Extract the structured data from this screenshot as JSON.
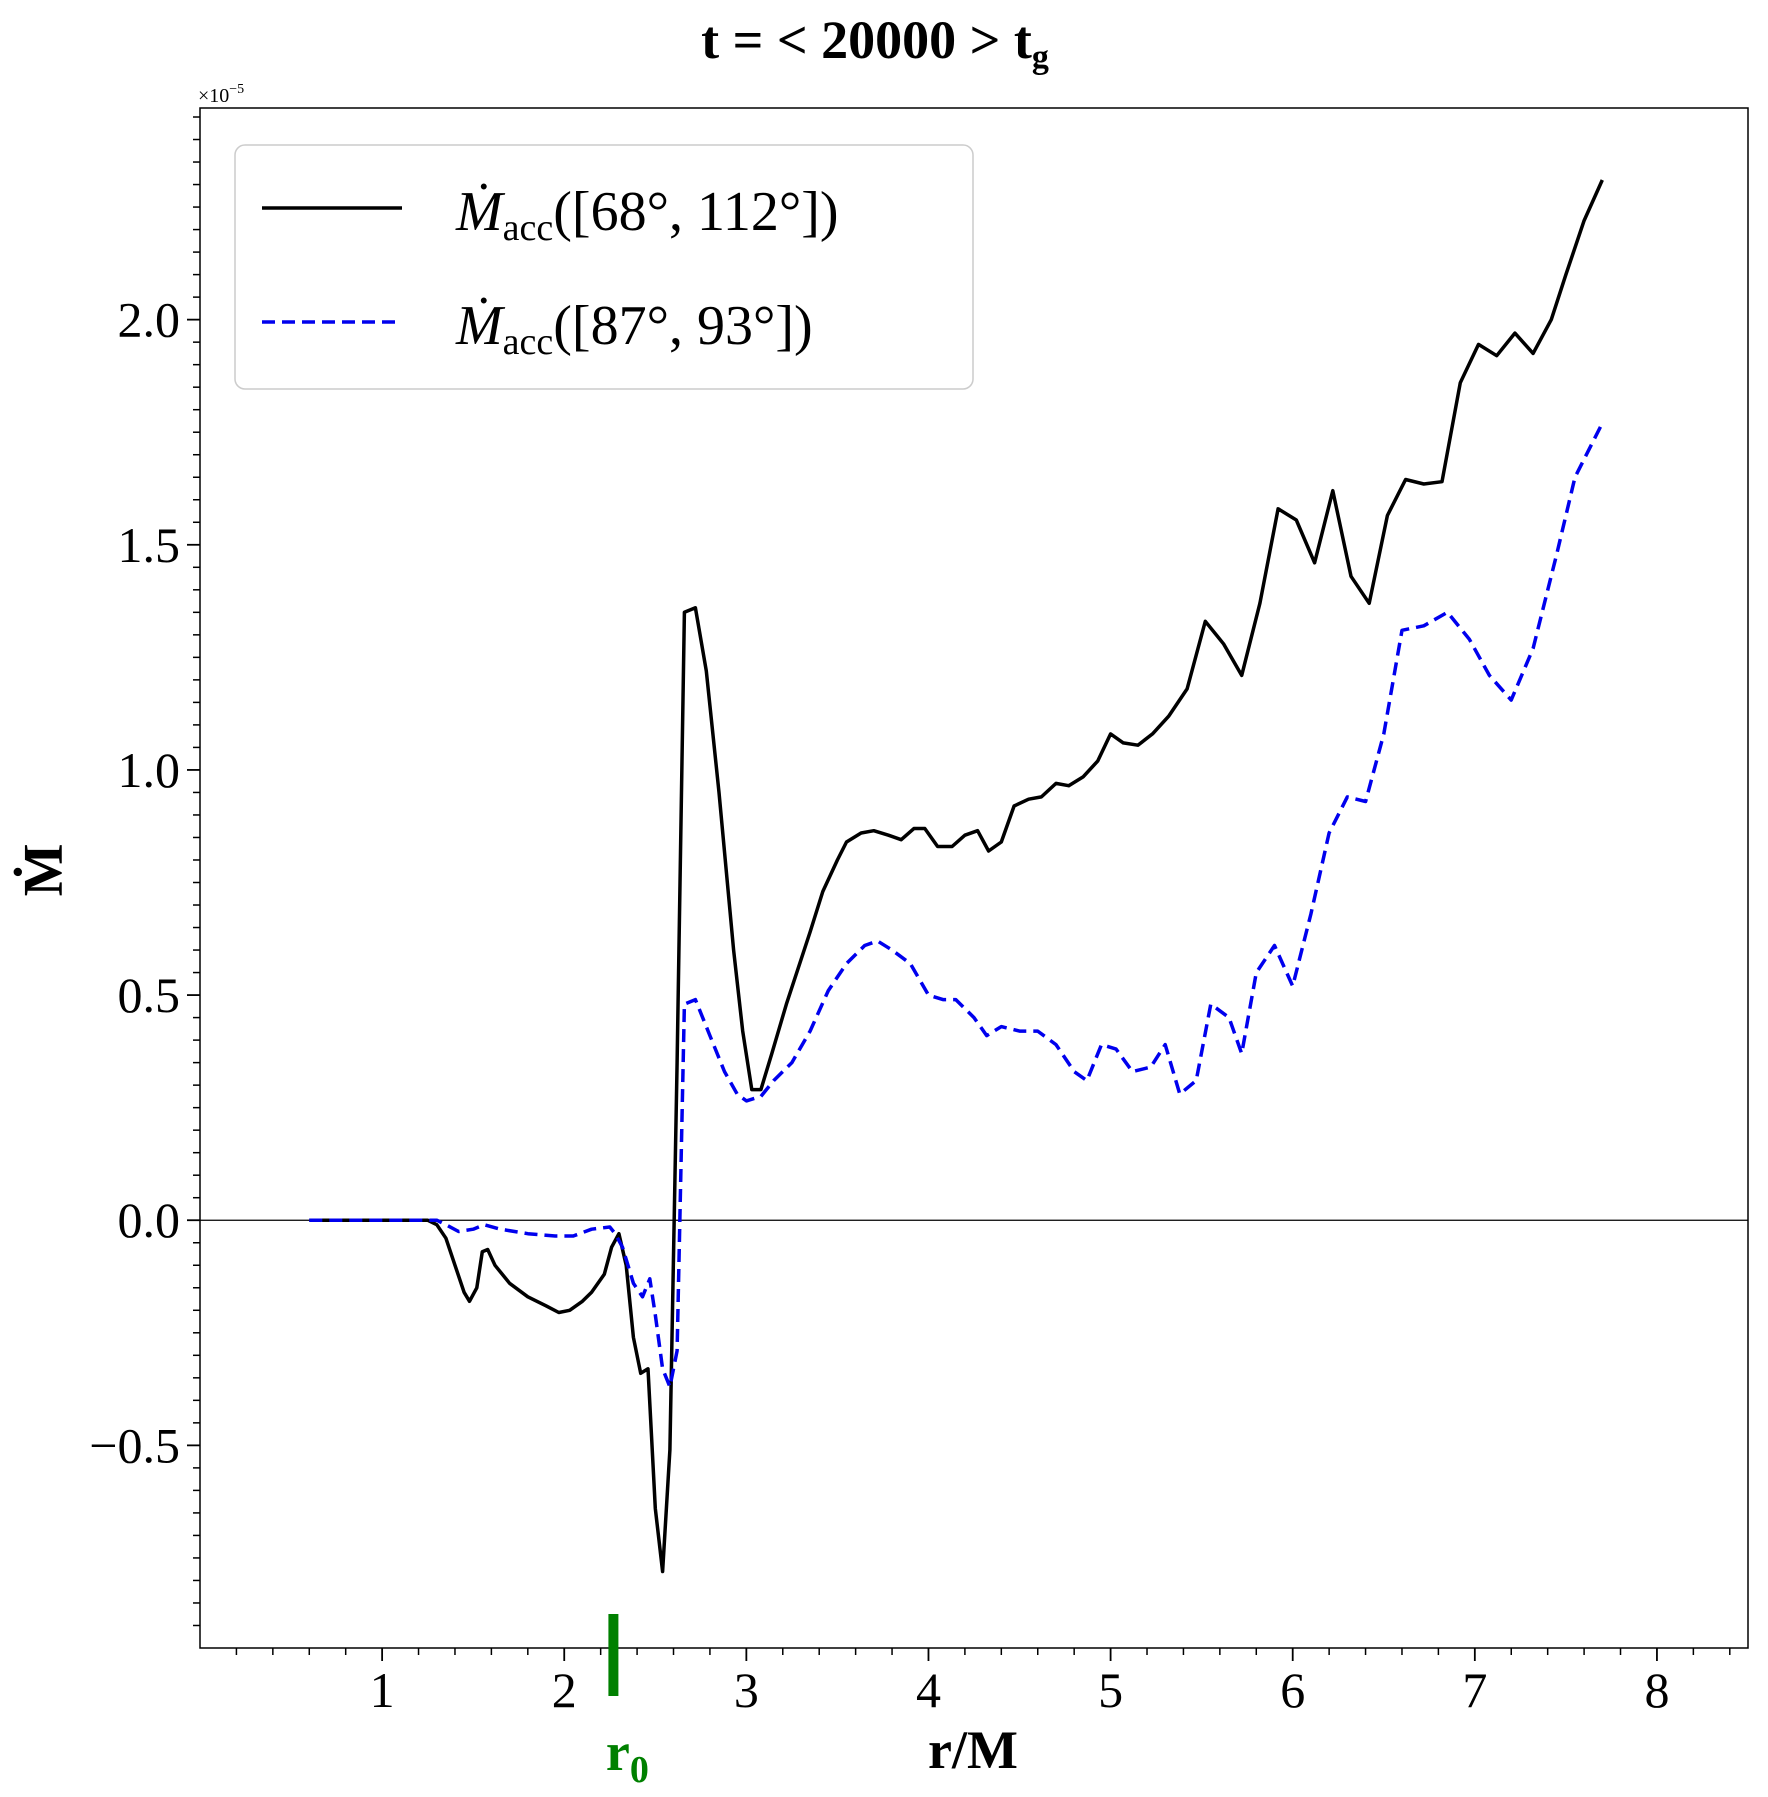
{
  "chart_data": {
    "type": "line",
    "title": "t = < 20000 >  t",
    "title_sub": "g",
    "xlabel": "r/M",
    "ylabel": "Ṁ",
    "y_offset_label": "×10",
    "y_offset_exp": "−5",
    "xlim": [
      0,
      8.5
    ],
    "ylim": [
      -0.95,
      2.47
    ],
    "x_ticks": [
      1,
      2,
      3,
      4,
      5,
      6,
      7,
      8
    ],
    "x_tick_labels": [
      "1",
      "2",
      "3",
      "4",
      "5",
      "6",
      "7",
      "8"
    ],
    "y_ticks": [
      -0.5,
      0.0,
      0.5,
      1.0,
      1.5,
      2.0
    ],
    "y_tick_labels": [
      "−0.5",
      "0.0",
      "0.5",
      "1.0",
      "1.5",
      "2.0"
    ],
    "r0_marker": {
      "x": 2.27,
      "label": "r",
      "label_sub": "0",
      "color": "#008000"
    },
    "zero_line": true,
    "legend_position": "upper-left",
    "series": [
      {
        "name": "Ṁacc([68°, 112°])",
        "legend_main": "Ṁ",
        "legend_sub": "acc",
        "legend_rest": "([68°, 112°])",
        "color": "#000000",
        "dash": "solid",
        "points": [
          [
            0.6,
            0
          ],
          [
            1.25,
            0
          ],
          [
            1.3,
            -0.01
          ],
          [
            1.35,
            -0.04
          ],
          [
            1.4,
            -0.1
          ],
          [
            1.45,
            -0.16
          ],
          [
            1.48,
            -0.18
          ],
          [
            1.52,
            -0.15
          ],
          [
            1.55,
            -0.07
          ],
          [
            1.58,
            -0.065
          ],
          [
            1.62,
            -0.1
          ],
          [
            1.7,
            -0.14
          ],
          [
            1.8,
            -0.17
          ],
          [
            1.9,
            -0.19
          ],
          [
            1.97,
            -0.205
          ],
          [
            2.03,
            -0.2
          ],
          [
            2.1,
            -0.18
          ],
          [
            2.15,
            -0.16
          ],
          [
            2.22,
            -0.12
          ],
          [
            2.26,
            -0.06
          ],
          [
            2.3,
            -0.03
          ],
          [
            2.34,
            -0.1
          ],
          [
            2.38,
            -0.26
          ],
          [
            2.42,
            -0.34
          ],
          [
            2.46,
            -0.33
          ],
          [
            2.5,
            -0.64
          ],
          [
            2.54,
            -0.78
          ],
          [
            2.58,
            -0.51
          ],
          [
            2.62,
            0.35
          ],
          [
            2.66,
            1.35
          ],
          [
            2.72,
            1.36
          ],
          [
            2.78,
            1.22
          ],
          [
            2.85,
            0.95
          ],
          [
            2.93,
            0.6
          ],
          [
            2.98,
            0.42
          ],
          [
            3.03,
            0.29
          ],
          [
            3.08,
            0.29
          ],
          [
            3.14,
            0.37
          ],
          [
            3.22,
            0.48
          ],
          [
            3.35,
            0.64
          ],
          [
            3.42,
            0.73
          ],
          [
            3.5,
            0.8
          ],
          [
            3.55,
            0.84
          ],
          [
            3.63,
            0.86
          ],
          [
            3.7,
            0.865
          ],
          [
            3.78,
            0.855
          ],
          [
            3.85,
            0.845
          ],
          [
            3.92,
            0.87
          ],
          [
            3.98,
            0.87
          ],
          [
            4.05,
            0.83
          ],
          [
            4.13,
            0.83
          ],
          [
            4.2,
            0.855
          ],
          [
            4.27,
            0.865
          ],
          [
            4.33,
            0.82
          ],
          [
            4.4,
            0.84
          ],
          [
            4.47,
            0.92
          ],
          [
            4.55,
            0.935
          ],
          [
            4.62,
            0.94
          ],
          [
            4.7,
            0.97
          ],
          [
            4.77,
            0.965
          ],
          [
            4.85,
            0.985
          ],
          [
            4.93,
            1.02
          ],
          [
            5.0,
            1.08
          ],
          [
            5.07,
            1.06
          ],
          [
            5.15,
            1.055
          ],
          [
            5.23,
            1.08
          ],
          [
            5.32,
            1.12
          ],
          [
            5.42,
            1.18
          ],
          [
            5.52,
            1.33
          ],
          [
            5.62,
            1.28
          ],
          [
            5.72,
            1.21
          ],
          [
            5.82,
            1.37
          ],
          [
            5.92,
            1.58
          ],
          [
            6.02,
            1.555
          ],
          [
            6.12,
            1.46
          ],
          [
            6.22,
            1.62
          ],
          [
            6.32,
            1.43
          ],
          [
            6.42,
            1.37
          ],
          [
            6.52,
            1.565
          ],
          [
            6.62,
            1.645
          ],
          [
            6.72,
            1.635
          ],
          [
            6.82,
            1.64
          ],
          [
            6.92,
            1.86
          ],
          [
            7.02,
            1.945
          ],
          [
            7.12,
            1.92
          ],
          [
            7.22,
            1.97
          ],
          [
            7.32,
            1.925
          ],
          [
            7.42,
            2.0
          ],
          [
            7.5,
            2.1
          ],
          [
            7.6,
            2.22
          ],
          [
            7.7,
            2.31
          ]
        ]
      },
      {
        "name": "Ṁacc([87°, 93°])",
        "legend_main": "Ṁ",
        "legend_sub": "acc",
        "legend_rest": "([87°, 93°])",
        "color": "#0000ee",
        "dash": "dashed",
        "points": [
          [
            0.6,
            0
          ],
          [
            1.3,
            0
          ],
          [
            1.35,
            -0.01
          ],
          [
            1.42,
            -0.025
          ],
          [
            1.5,
            -0.02
          ],
          [
            1.56,
            -0.01
          ],
          [
            1.65,
            -0.02
          ],
          [
            1.8,
            -0.03
          ],
          [
            1.95,
            -0.035
          ],
          [
            2.05,
            -0.035
          ],
          [
            2.15,
            -0.02
          ],
          [
            2.25,
            -0.015
          ],
          [
            2.28,
            -0.03
          ],
          [
            2.32,
            -0.06
          ],
          [
            2.38,
            -0.14
          ],
          [
            2.43,
            -0.17
          ],
          [
            2.47,
            -0.13
          ],
          [
            2.5,
            -0.21
          ],
          [
            2.54,
            -0.33
          ],
          [
            2.58,
            -0.37
          ],
          [
            2.62,
            -0.29
          ],
          [
            2.66,
            0.48
          ],
          [
            2.72,
            0.49
          ],
          [
            2.8,
            0.41
          ],
          [
            2.88,
            0.33
          ],
          [
            2.95,
            0.28
          ],
          [
            3.0,
            0.265
          ],
          [
            3.08,
            0.275
          ],
          [
            3.15,
            0.31
          ],
          [
            3.25,
            0.35
          ],
          [
            3.35,
            0.42
          ],
          [
            3.45,
            0.51
          ],
          [
            3.55,
            0.57
          ],
          [
            3.65,
            0.61
          ],
          [
            3.72,
            0.62
          ],
          [
            3.8,
            0.6
          ],
          [
            3.9,
            0.57
          ],
          [
            4.0,
            0.5
          ],
          [
            4.08,
            0.49
          ],
          [
            4.15,
            0.49
          ],
          [
            4.25,
            0.45
          ],
          [
            4.32,
            0.41
          ],
          [
            4.4,
            0.43
          ],
          [
            4.5,
            0.42
          ],
          [
            4.6,
            0.42
          ],
          [
            4.7,
            0.39
          ],
          [
            4.8,
            0.33
          ],
          [
            4.87,
            0.31
          ],
          [
            4.95,
            0.39
          ],
          [
            5.03,
            0.38
          ],
          [
            5.12,
            0.33
          ],
          [
            5.22,
            0.34
          ],
          [
            5.3,
            0.39
          ],
          [
            5.38,
            0.28
          ],
          [
            5.47,
            0.31
          ],
          [
            5.55,
            0.48
          ],
          [
            5.65,
            0.45
          ],
          [
            5.72,
            0.37
          ],
          [
            5.8,
            0.55
          ],
          [
            5.9,
            0.61
          ],
          [
            6.0,
            0.52
          ],
          [
            6.1,
            0.68
          ],
          [
            6.2,
            0.86
          ],
          [
            6.3,
            0.94
          ],
          [
            6.4,
            0.93
          ],
          [
            6.5,
            1.08
          ],
          [
            6.6,
            1.31
          ],
          [
            6.72,
            1.32
          ],
          [
            6.85,
            1.35
          ],
          [
            6.97,
            1.29
          ],
          [
            7.08,
            1.21
          ],
          [
            7.2,
            1.155
          ],
          [
            7.32,
            1.27
          ],
          [
            7.45,
            1.48
          ],
          [
            7.55,
            1.65
          ],
          [
            7.7,
            1.77
          ]
        ]
      }
    ]
  }
}
